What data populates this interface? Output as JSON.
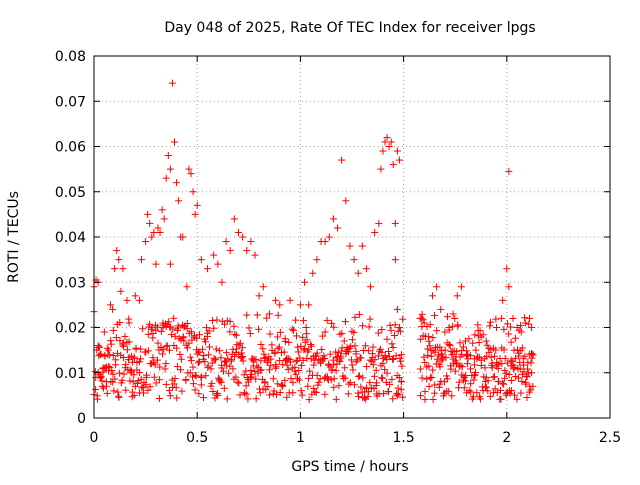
{
  "chart_data": {
    "type": "scatter",
    "title": "Day 048 of 2025, Rate Of TEC Index for receiver lpgs",
    "xlabel": "GPS time / hours",
    "ylabel": "ROTI / TECUs",
    "xlim": [
      0,
      2.5
    ],
    "ylim": [
      0,
      0.08
    ],
    "x_ticks": [
      "0",
      "0.5",
      "1",
      "1.5",
      "2",
      "2.5"
    ],
    "y_ticks": [
      "0",
      "0.01",
      "0.02",
      "0.03",
      "0.04",
      "0.05",
      "0.06",
      "0.07",
      "0.08"
    ],
    "grid": true,
    "marker": "+",
    "marker_color": "#ff0000",
    "series": [
      {
        "values": [
          [
            0.0,
            0.0235
          ],
          [
            0.0,
            0.029
          ],
          [
            0.01,
            0.0305
          ],
          [
            0.02,
            0.03
          ],
          [
            0.02,
            0.016
          ],
          [
            0.03,
            0.009
          ],
          [
            0.03,
            0.014
          ],
          [
            0.04,
            0.007
          ],
          [
            0.05,
            0.019
          ],
          [
            0.05,
            0.011
          ],
          [
            0.06,
            0.008
          ],
          [
            0.07,
            0.015
          ],
          [
            0.08,
            0.025
          ],
          [
            0.09,
            0.024
          ],
          [
            0.1,
            0.033
          ],
          [
            0.11,
            0.037
          ],
          [
            0.12,
            0.035
          ],
          [
            0.13,
            0.028
          ],
          [
            0.14,
            0.033
          ],
          [
            0.15,
            0.018
          ],
          [
            0.16,
            0.026
          ],
          [
            0.17,
            0.021
          ],
          [
            0.18,
            0.01
          ],
          [
            0.19,
            0.008
          ],
          [
            0.2,
            0.027
          ],
          [
            0.22,
            0.026
          ],
          [
            0.23,
            0.035
          ],
          [
            0.25,
            0.039
          ],
          [
            0.26,
            0.045
          ],
          [
            0.27,
            0.043
          ],
          [
            0.28,
            0.04
          ],
          [
            0.29,
            0.041
          ],
          [
            0.3,
            0.034
          ],
          [
            0.31,
            0.042
          ],
          [
            0.32,
            0.041
          ],
          [
            0.33,
            0.046
          ],
          [
            0.34,
            0.044
          ],
          [
            0.35,
            0.053
          ],
          [
            0.36,
            0.058
          ],
          [
            0.37,
            0.055
          ],
          [
            0.37,
            0.034
          ],
          [
            0.38,
            0.074
          ],
          [
            0.39,
            0.061
          ],
          [
            0.4,
            0.052
          ],
          [
            0.41,
            0.048
          ],
          [
            0.42,
            0.04
          ],
          [
            0.43,
            0.04
          ],
          [
            0.45,
            0.029
          ],
          [
            0.46,
            0.055
          ],
          [
            0.47,
            0.054
          ],
          [
            0.48,
            0.05
          ],
          [
            0.49,
            0.045
          ],
          [
            0.5,
            0.047
          ],
          [
            0.52,
            0.035
          ],
          [
            0.55,
            0.033
          ],
          [
            0.58,
            0.036
          ],
          [
            0.6,
            0.034
          ],
          [
            0.62,
            0.03
          ],
          [
            0.64,
            0.039
          ],
          [
            0.66,
            0.037
          ],
          [
            0.68,
            0.044
          ],
          [
            0.7,
            0.041
          ],
          [
            0.72,
            0.04
          ],
          [
            0.74,
            0.037
          ],
          [
            0.76,
            0.039
          ],
          [
            0.78,
            0.036
          ],
          [
            0.8,
            0.027
          ],
          [
            0.82,
            0.029
          ],
          [
            0.85,
            0.023
          ],
          [
            0.88,
            0.026
          ],
          [
            0.9,
            0.025
          ],
          [
            0.95,
            0.026
          ],
          [
            1.0,
            0.025
          ],
          [
            1.02,
            0.03
          ],
          [
            1.04,
            0.025
          ],
          [
            1.06,
            0.032
          ],
          [
            1.08,
            0.035
          ],
          [
            1.1,
            0.039
          ],
          [
            1.12,
            0.039
          ],
          [
            1.14,
            0.04
          ],
          [
            1.16,
            0.044
          ],
          [
            1.18,
            0.042
          ],
          [
            1.2,
            0.057
          ],
          [
            1.22,
            0.048
          ],
          [
            1.24,
            0.038
          ],
          [
            1.26,
            0.035
          ],
          [
            1.28,
            0.032
          ],
          [
            1.3,
            0.038
          ],
          [
            1.32,
            0.033
          ],
          [
            1.34,
            0.029
          ],
          [
            1.36,
            0.041
          ],
          [
            1.38,
            0.043
          ],
          [
            1.39,
            0.055
          ],
          [
            1.4,
            0.059
          ],
          [
            1.41,
            0.061
          ],
          [
            1.42,
            0.062
          ],
          [
            1.43,
            0.06
          ],
          [
            1.44,
            0.061
          ],
          [
            1.45,
            0.056
          ],
          [
            1.46,
            0.043
          ],
          [
            1.47,
            0.059
          ],
          [
            1.48,
            0.057
          ],
          [
            1.46,
            0.035
          ],
          [
            1.47,
            0.024
          ],
          [
            1.48,
            0.02
          ],
          [
            1.49,
            0.014
          ],
          [
            1.49,
            0.008
          ],
          [
            1.58,
            0.022
          ],
          [
            1.6,
            0.021
          ],
          [
            1.62,
            0.018
          ],
          [
            1.64,
            0.027
          ],
          [
            1.66,
            0.029
          ],
          [
            1.68,
            0.024
          ],
          [
            1.7,
            0.019
          ],
          [
            1.72,
            0.02
          ],
          [
            1.74,
            0.023
          ],
          [
            1.76,
            0.027
          ],
          [
            1.78,
            0.029
          ],
          [
            1.8,
            0.017
          ],
          [
            1.85,
            0.015
          ],
          [
            1.9,
            0.017
          ],
          [
            1.95,
            0.02
          ],
          [
            1.98,
            0.026
          ],
          [
            2.0,
            0.033
          ],
          [
            2.01,
            0.029
          ],
          [
            2.01,
            0.0545
          ],
          [
            2.03,
            0.022
          ],
          [
            2.05,
            0.02
          ],
          [
            2.07,
            0.019
          ],
          [
            2.09,
            0.021
          ],
          [
            2.11,
            0.022
          ],
          [
            2.12,
            0.02
          ],
          [
            2.12,
            0.01
          ]
        ],
        "band_fill_seed": 48
      }
    ]
  }
}
